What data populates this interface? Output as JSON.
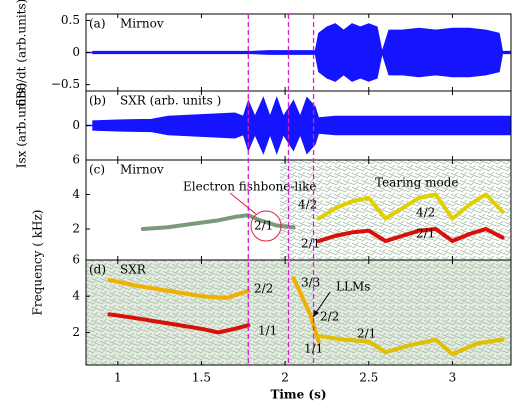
{
  "chart_data": [
    {
      "type": "envelope",
      "label": "(a)",
      "title": "Mirnov",
      "ylabel": "δBθ/dt (arb.units)",
      "color": "#1414ff",
      "x": [
        0.85,
        1.0,
        1.2,
        1.4,
        1.6,
        1.8,
        1.9,
        2.0,
        2.1,
        2.18,
        2.2,
        2.25,
        2.3,
        2.35,
        2.4,
        2.45,
        2.5,
        2.55,
        2.58,
        2.62,
        2.7,
        2.8,
        2.9,
        3.0,
        3.1,
        3.2,
        3.28,
        3.3,
        3.35
      ],
      "values": [
        0.02,
        0.02,
        0.02,
        0.02,
        0.02,
        0.02,
        0.03,
        0.03,
        0.03,
        0.03,
        0.3,
        0.4,
        0.45,
        0.35,
        0.45,
        0.4,
        0.45,
        0.4,
        0.02,
        0.35,
        0.35,
        0.38,
        0.35,
        0.38,
        0.38,
        0.35,
        0.3,
        0.02,
        0.02
      ],
      "xlim": [
        0.81,
        3.35
      ],
      "xticks": [
        1,
        1.5,
        2,
        2.5,
        3
      ],
      "ylim": [
        -0.6,
        0.6
      ],
      "yticks": [
        {
          "value": -0.5,
          "label": "−0.5"
        },
        0,
        0.5
      ]
    },
    {
      "type": "envelope",
      "label": "(b)",
      "title": "SXR (arb. units )",
      "ylabel": "Isx (arb.units)",
      "color": "#1414ff",
      "x": [
        0.85,
        1.0,
        1.2,
        1.3,
        1.5,
        1.7,
        1.75,
        1.78,
        1.82,
        1.87,
        1.91,
        1.95,
        1.99,
        2.05,
        2.09,
        2.13,
        2.18,
        2.2,
        2.3,
        2.5,
        2.7,
        2.9,
        3.1,
        3.3,
        3.35
      ],
      "values": [
        0.15,
        0.18,
        0.2,
        0.3,
        0.35,
        0.4,
        0.3,
        0.8,
        0.3,
        0.9,
        0.3,
        0.9,
        0.3,
        0.8,
        0.3,
        0.9,
        0.6,
        0.25,
        0.3,
        0.3,
        0.3,
        0.3,
        0.3,
        0.3,
        0.3
      ],
      "xlim": [
        0.81,
        3.35
      ],
      "xticks": [
        1,
        1.5,
        2,
        2.5,
        3
      ],
      "ylim": [
        -1.1,
        1.1
      ],
      "yticks": [
        0
      ]
    },
    {
      "type": "spectrogram",
      "label": "(c)",
      "title": "Mirnov",
      "ylabel": "Frequency ( kHz)",
      "xlim": [
        0.81,
        3.35
      ],
      "xticks": [
        1,
        1.5,
        2,
        2.5,
        3
      ],
      "ylim": [
        0.2,
        6
      ],
      "yticks": [
        2,
        4,
        6
      ],
      "series": [
        {
          "color": "#7a9a7a",
          "x": [
            1.15,
            1.3,
            1.45,
            1.6,
            1.7,
            1.78,
            1.85,
            1.95,
            2.05
          ],
          "values": [
            2.0,
            2.1,
            2.3,
            2.5,
            2.7,
            2.8,
            2.5,
            2.2,
            2.1
          ]
        },
        {
          "color": "#e0d000",
          "x": [
            2.2,
            2.3,
            2.4,
            2.5,
            2.6,
            2.7,
            2.8,
            2.9,
            3.0,
            3.1,
            3.2,
            3.3
          ],
          "values": [
            2.6,
            3.2,
            3.6,
            3.8,
            2.6,
            3.2,
            3.8,
            4.0,
            2.6,
            3.4,
            4.0,
            3.0
          ]
        },
        {
          "color": "#d8100a",
          "x": [
            2.2,
            2.3,
            2.4,
            2.5,
            2.6,
            2.7,
            2.8,
            2.9,
            3.0,
            3.1,
            3.2,
            3.3
          ],
          "values": [
            1.3,
            1.6,
            1.8,
            1.9,
            1.3,
            1.6,
            1.9,
            2.0,
            1.3,
            1.7,
            2.0,
            1.5
          ]
        }
      ],
      "annotations": [
        {
          "text": "Electron fishbone-like",
          "color": "#e8203a"
        },
        {
          "text": "Tearing mode",
          "color": "#e030d0"
        },
        {
          "text": "4/2",
          "color": "#000000"
        },
        {
          "text": "2/1",
          "color": "#000000"
        },
        {
          "text": "2/1",
          "color": "#000000"
        },
        {
          "text": "4/2",
          "color": "#000000"
        },
        {
          "text": "2/1",
          "color": "#000000"
        }
      ]
    },
    {
      "type": "spectrogram",
      "label": "(d)",
      "title": "SXR",
      "xlabel": "Time (s)",
      "xlim": [
        0.81,
        3.35
      ],
      "xticks": [
        1,
        1.5,
        2,
        2.5,
        3
      ],
      "ylim": [
        0.2,
        6
      ],
      "yticks": [
        2,
        4,
        6
      ],
      "vlines": [
        1.78,
        2.02,
        2.17
      ],
      "vline_color": "#d020d0",
      "series": [
        {
          "color": "#f0b000",
          "x": [
            0.95,
            1.1,
            1.3,
            1.5,
            1.65,
            1.78
          ],
          "values": [
            4.9,
            4.6,
            4.3,
            4.0,
            3.9,
            4.3
          ]
        },
        {
          "color": "#d8100a",
          "x": [
            0.95,
            1.1,
            1.3,
            1.5,
            1.6,
            1.7,
            1.78
          ],
          "values": [
            3.0,
            2.8,
            2.5,
            2.2,
            2.0,
            2.2,
            2.4
          ]
        },
        {
          "color": "#f0b000",
          "x": [
            2.05,
            2.1,
            2.15,
            2.2
          ],
          "values": [
            5.0,
            4.0,
            3.0,
            1.5
          ]
        },
        {
          "color": "#e0c000",
          "x": [
            2.2,
            2.35,
            2.5,
            2.6,
            2.75,
            2.9,
            3.0,
            3.15,
            3.3
          ],
          "values": [
            1.8,
            1.6,
            1.5,
            0.9,
            1.3,
            1.6,
            0.8,
            1.4,
            1.6
          ]
        }
      ],
      "annotations": [
        {
          "text": "2/2",
          "color": "#000000"
        },
        {
          "text": "3/3",
          "color": "#000000"
        },
        {
          "text": "LLMs",
          "color": "#000000"
        },
        {
          "text": "2/2",
          "color": "#000000"
        },
        {
          "text": "1/1",
          "color": "#000000"
        },
        {
          "text": "1/1",
          "color": "#000000"
        },
        {
          "text": "2/1",
          "color": "#000000"
        }
      ]
    }
  ]
}
